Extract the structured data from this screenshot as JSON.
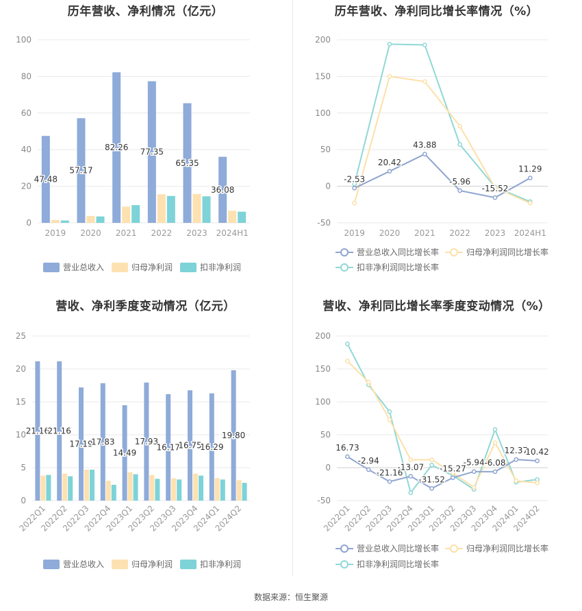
{
  "colors": {
    "revenue": "#8eabd9",
    "net_profit": "#fde1b0",
    "deducted_profit": "#7dd3d8",
    "revenue_line": "#8ea4cf",
    "net_line": "#fce0a8",
    "deducted_line": "#8fd8d5"
  },
  "source": "数据来源：恒生聚源",
  "chart_data": [
    {
      "type": "bar",
      "title": "历年营收、净利情况（亿元）",
      "categories": [
        "2019",
        "2020",
        "2021",
        "2022",
        "2023",
        "2024H1"
      ],
      "ylim": [
        0,
        100
      ],
      "yticks": [
        0,
        20,
        40,
        60,
        80,
        100
      ],
      "legend_position": "bottom",
      "series": [
        {
          "name": "营业总收入",
          "values": [
            47.48,
            57.17,
            82.26,
            77.35,
            65.35,
            36.08
          ],
          "labels": [
            "47.48",
            "57.17",
            "82.26",
            "77.35",
            "65.35",
            "36.08"
          ]
        },
        {
          "name": "归母净利润",
          "values": [
            1.6,
            3.8,
            8.9,
            15.6,
            15.8,
            6.6
          ]
        },
        {
          "name": "扣非净利润",
          "values": [
            1.3,
            3.5,
            9.7,
            14.7,
            14.5,
            6.1
          ]
        }
      ]
    },
    {
      "type": "line",
      "title": "历年营收、净利同比增长率情况（%）",
      "categories": [
        "2019",
        "2020",
        "2021",
        "2022",
        "2023",
        "2024H1"
      ],
      "ylim": [
        -50,
        200
      ],
      "yticks": [
        -50,
        0,
        50,
        100,
        150,
        200
      ],
      "legend_position": "bottom",
      "series": [
        {
          "name": "营业总收入同比增长率",
          "values": [
            -2.53,
            20.42,
            43.88,
            -5.96,
            -15.52,
            11.29
          ],
          "labels": [
            "-2.53",
            "20.42",
            "43.88",
            "-5.96",
            "-15.52",
            "11.29"
          ]
        },
        {
          "name": "归母净利润同比增长率",
          "values": [
            -23,
            150,
            143,
            82,
            -2,
            -23
          ]
        },
        {
          "name": "扣非净利润同比增长率",
          "values": [
            3,
            194,
            193,
            57,
            -1,
            -21
          ]
        }
      ]
    },
    {
      "type": "bar",
      "title": "营收、净利季度变动情况（亿元）",
      "categories": [
        "2022Q1",
        "2022Q2",
        "2022Q3",
        "2022Q4",
        "2023Q1",
        "2023Q2",
        "2023Q3",
        "2023Q4",
        "2024Q1",
        "2024Q2"
      ],
      "ylim": [
        0,
        25
      ],
      "yticks": [
        0,
        5,
        10,
        15,
        20,
        25
      ],
      "legend_position": "bottom",
      "series": [
        {
          "name": "营业总收入",
          "values": [
            21.16,
            21.16,
            17.19,
            17.83,
            14.49,
            17.93,
            16.17,
            16.75,
            16.29,
            19.8
          ],
          "labels": [
            "21.16",
            "21.16",
            "17.19",
            "17.83",
            "14.49",
            "17.93",
            "16.17",
            "16.75",
            "16.29",
            "19.80"
          ]
        },
        {
          "name": "归母净利润",
          "values": [
            3.8,
            4.1,
            4.7,
            3.0,
            4.3,
            3.9,
            3.4,
            4.1,
            3.4,
            3.1
          ]
        },
        {
          "name": "扣非净利润",
          "values": [
            3.9,
            3.7,
            4.7,
            2.4,
            4.0,
            3.3,
            3.2,
            3.8,
            3.2,
            2.7
          ]
        }
      ]
    },
    {
      "type": "line",
      "title": "营收、净利同比增长率季度变动情况（%）",
      "categories": [
        "2022Q1",
        "2022Q2",
        "2022Q3",
        "2022Q4",
        "2023Q1",
        "2023Q2",
        "2023Q3",
        "2023Q4",
        "2024Q1",
        "2024Q2"
      ],
      "ylim": [
        -50,
        200
      ],
      "yticks": [
        -50,
        0,
        50,
        100,
        150,
        200
      ],
      "legend_position": "bottom",
      "series": [
        {
          "name": "营业总收入同比增长率",
          "values": [
            16.73,
            -2.94,
            -21.16,
            -13.07,
            -31.52,
            -15.27,
            -5.94,
            -6.08,
            12.37,
            10.42
          ],
          "labels": [
            "16.73",
            "-2.94",
            "-21.16",
            "-13.07",
            "-31.52",
            "-15.27",
            "-5.94",
            "-6.08",
            "12.37",
            "10.42"
          ]
        },
        {
          "name": "归母净利润同比增长率",
          "values": [
            162,
            130,
            73,
            12,
            12,
            -8,
            -30,
            38,
            -20,
            -23
          ]
        },
        {
          "name": "扣非净利润同比增长率",
          "values": [
            188,
            126,
            85,
            -38,
            4,
            -12,
            -33,
            58,
            -22,
            -18
          ]
        }
      ]
    }
  ]
}
